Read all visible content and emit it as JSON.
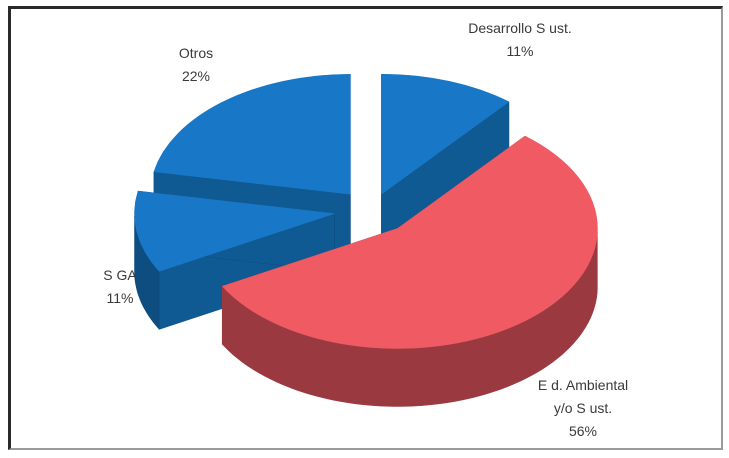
{
  "chart_data": {
    "type": "pie",
    "title": "",
    "categories": [
      "Desarrollo Sust.",
      "Ed. Ambiental y/o Sust.",
      "SGA",
      "Otros"
    ],
    "values": [
      11,
      56,
      11,
      22
    ],
    "labels": [
      {
        "name_lines": [
          "Desarrollo S ust."
        ],
        "percent": "11%"
      },
      {
        "name_lines": [
          "E d. Ambiental",
          "y/o S ust."
        ],
        "percent": "56%"
      },
      {
        "name_lines": [
          "S GA"
        ],
        "percent": "11%"
      },
      {
        "name_lines": [
          "Otros"
        ],
        "percent": "22%"
      }
    ],
    "colors": {
      "top": [
        "#1877c6",
        "#ef5a63",
        "#1877c6",
        "#1877c6"
      ],
      "side": [
        "#0d4d80",
        "#9a3a40",
        "#0d4d80",
        "#0d4d80"
      ],
      "inner": [
        "#0f5a93",
        "#b5454c",
        "#0f5a93",
        "#0f5a93"
      ]
    },
    "style": "3d-exploded",
    "legend": "none"
  }
}
